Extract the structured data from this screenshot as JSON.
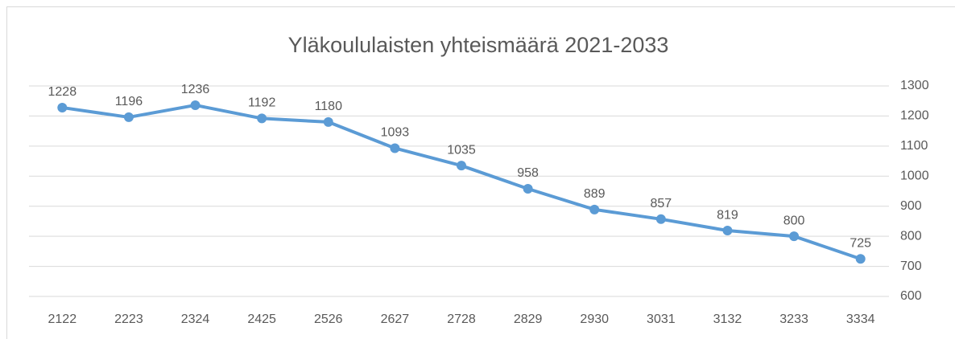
{
  "chart_data": {
    "type": "line",
    "title": "Yläkoululaisten yhteismäärä 2021-2033",
    "categories": [
      "2122",
      "2223",
      "2324",
      "2425",
      "2526",
      "2627",
      "2728",
      "2829",
      "2930",
      "3031",
      "3132",
      "3233",
      "3334"
    ],
    "values": [
      1228,
      1196,
      1236,
      1192,
      1180,
      1093,
      1035,
      958,
      889,
      857,
      819,
      800,
      725
    ],
    "color": "#5b9bd5",
    "ylim": [
      600,
      1300
    ],
    "yticks": [
      600,
      700,
      800,
      900,
      1000,
      1100,
      1200,
      1300
    ],
    "y_axis_side": "right",
    "grid": true
  }
}
